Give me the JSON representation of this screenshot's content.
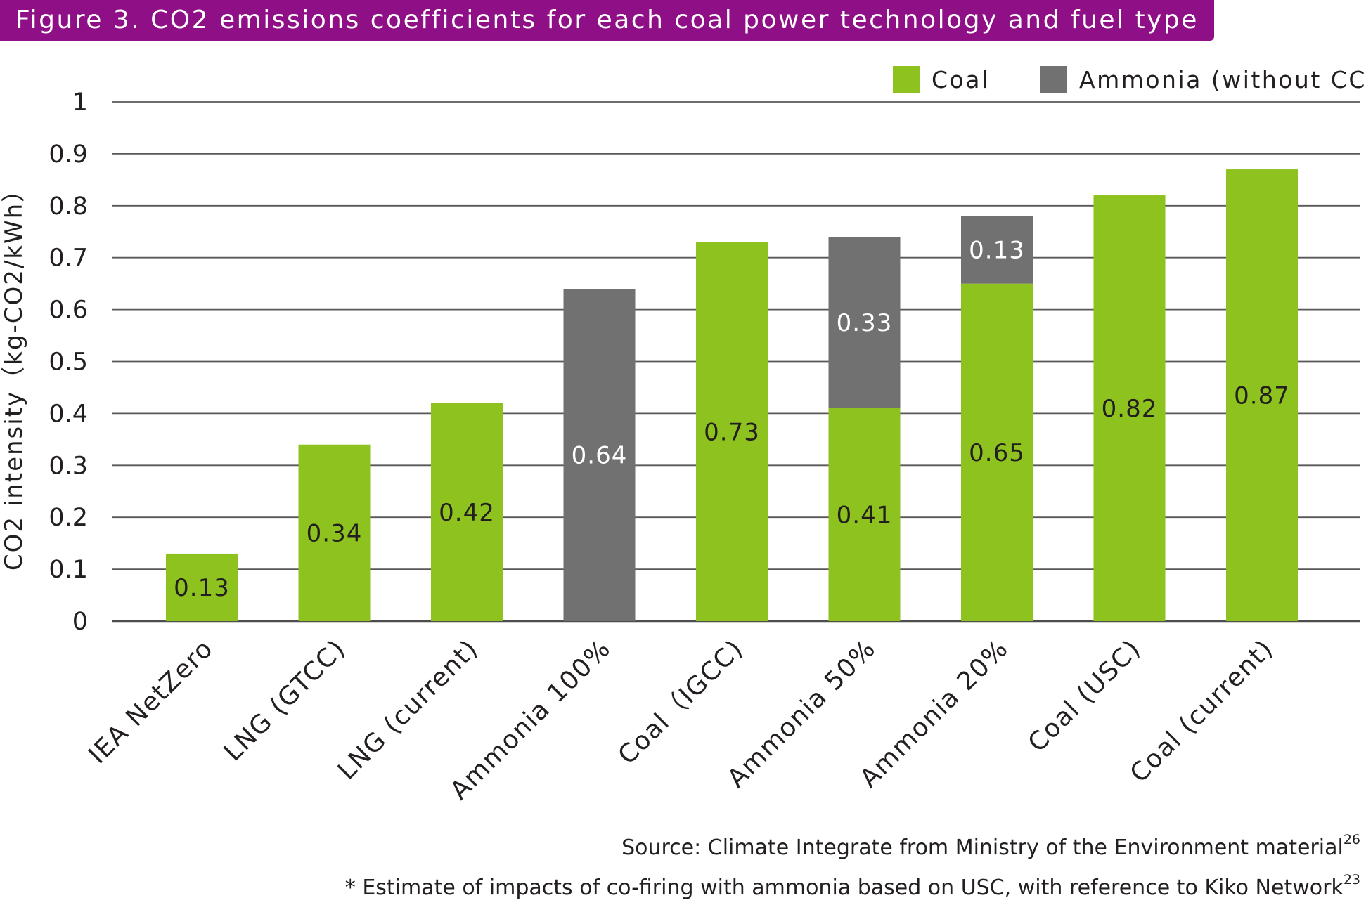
{
  "title": {
    "text": "Figure 3. CO2 emissions coefficients for each coal power technology and fuel type"
  },
  "chart_data": {
    "type": "bar",
    "stacked": true,
    "title": "Figure 3. CO2 emissions coefficients for each coal power technology and fuel type",
    "ylabel": "CO2 intensity（kg-CO2/kWh）",
    "xlabel": "",
    "ylim": [
      0,
      1
    ],
    "yticks": [
      "0",
      "0.1",
      "0.2",
      "0.3",
      "0.4",
      "0.5",
      "0.6",
      "0.7",
      "0.8",
      "0.9",
      "1"
    ],
    "grid": true,
    "legend_position": "top-right",
    "categories": [
      "IEA NetZero",
      "LNG (GTCC)",
      "LNG (current)",
      "Ammonia 100%",
      "Coal（IGCC)",
      "Ammonia 50%",
      "Ammonia 20%",
      "Coal (USC)",
      "Coal (current)"
    ],
    "series": [
      {
        "name": "Coal",
        "color": "#8dc21f",
        "values": [
          0.13,
          0.34,
          0.42,
          0,
          0.73,
          0.41,
          0.65,
          0.82,
          0.87
        ],
        "labels": [
          "0.13",
          "0.34",
          "0.42",
          "",
          "0.73",
          "0.41",
          "0.65",
          "0.82",
          "0.87"
        ]
      },
      {
        "name": "Ammonia (without CCS)",
        "color": "#727171",
        "values": [
          0,
          0,
          0,
          0.64,
          0,
          0.33,
          0.13,
          0,
          0
        ],
        "labels": [
          "",
          "",
          "",
          "0.64",
          "",
          "0.33",
          "0.13",
          "",
          ""
        ]
      }
    ]
  },
  "source": {
    "text": "Source:  Climate Integrate  from Ministry of the Environment material",
    "ref": "26"
  },
  "note": {
    "text": "* Estimate of impacts of co-firing with ammonia based on USC, with reference to Kiko Network",
    "ref": "23"
  }
}
